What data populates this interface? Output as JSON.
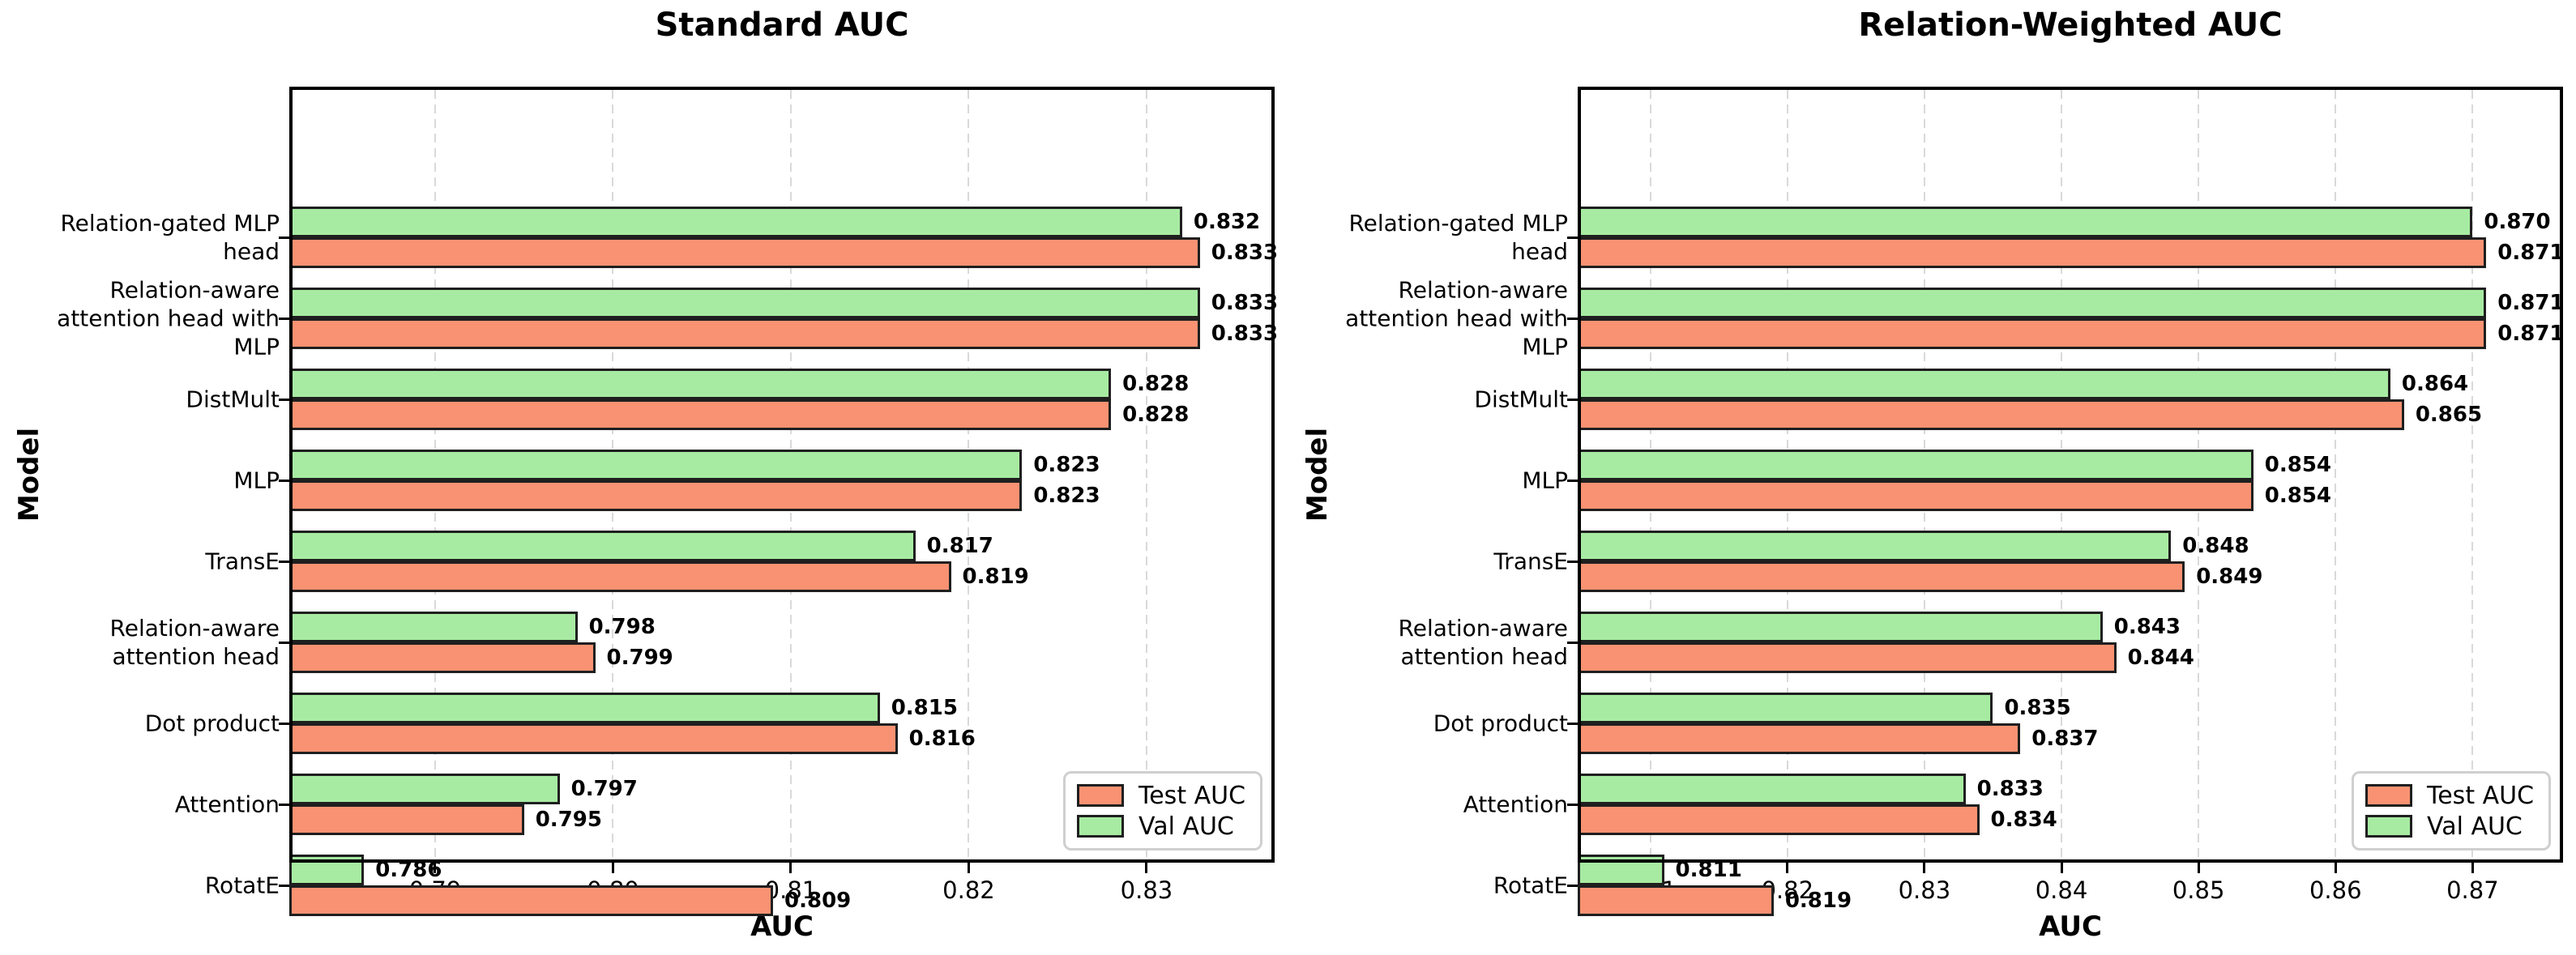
{
  "figure": {
    "background": "#ffffff",
    "bar_edge_color": "#1f1f1f",
    "grid_color": "#d9d9d9",
    "axis_color": "#000000"
  },
  "chart_data": [
    {
      "type": "bar",
      "orientation": "horizontal",
      "title": "Standard AUC",
      "xlabel": "AUC",
      "ylabel": "Model",
      "grid": {
        "axis": "x",
        "style": "dashed",
        "color": "#d9d9d9"
      },
      "categories": [
        "Relation-gated MLP\nhead",
        "Relation-aware\nattention head with\nMLP",
        "DistMult",
        "MLP",
        "TransE",
        "Relation-aware\nattention head",
        "Dot product",
        "Attention",
        "RotatE"
      ],
      "series": [
        {
          "name": "Test AUC",
          "color": "#F99272",
          "position": "bottom",
          "values": [
            0.833,
            0.833,
            0.828,
            0.823,
            0.819,
            0.799,
            0.816,
            0.795,
            0.809
          ]
        },
        {
          "name": "Val AUC",
          "color": "#A7EBA2",
          "position": "top",
          "values": [
            0.832,
            0.833,
            0.828,
            0.823,
            0.817,
            0.798,
            0.815,
            0.797,
            0.786
          ]
        }
      ],
      "xlim": [
        0.7818,
        0.8372
      ],
      "xticks": [
        0.79,
        0.8,
        0.81,
        0.82,
        0.83
      ],
      "value_label_decimals": 3,
      "legend": {
        "labels": [
          "Test AUC",
          "Val AUC"
        ],
        "position": "lower right"
      }
    },
    {
      "type": "bar",
      "orientation": "horizontal",
      "title": "Relation-Weighted AUC",
      "xlabel": "AUC",
      "ylabel": "Model",
      "grid": {
        "axis": "x",
        "style": "dashed",
        "color": "#d9d9d9"
      },
      "categories": [
        "Relation-gated MLP\nhead",
        "Relation-aware\nattention head with\nMLP",
        "DistMult",
        "MLP",
        "TransE",
        "Relation-aware\nattention head",
        "Dot product",
        "Attention",
        "RotatE"
      ],
      "series": [
        {
          "name": "Test AUC",
          "color": "#F99272",
          "position": "bottom",
          "values": [
            0.871,
            0.871,
            0.865,
            0.854,
            0.849,
            0.844,
            0.837,
            0.834,
            0.819
          ]
        },
        {
          "name": "Val AUC",
          "color": "#A7EBA2",
          "position": "top",
          "values": [
            0.87,
            0.871,
            0.864,
            0.854,
            0.848,
            0.843,
            0.835,
            0.833,
            0.811
          ]
        }
      ],
      "xlim": [
        0.8047,
        0.8766
      ],
      "xticks": [
        0.81,
        0.82,
        0.83,
        0.84,
        0.85,
        0.86,
        0.87
      ],
      "value_label_decimals": 3,
      "legend": {
        "labels": [
          "Test AUC",
          "Val AUC"
        ],
        "position": "lower right"
      }
    }
  ]
}
